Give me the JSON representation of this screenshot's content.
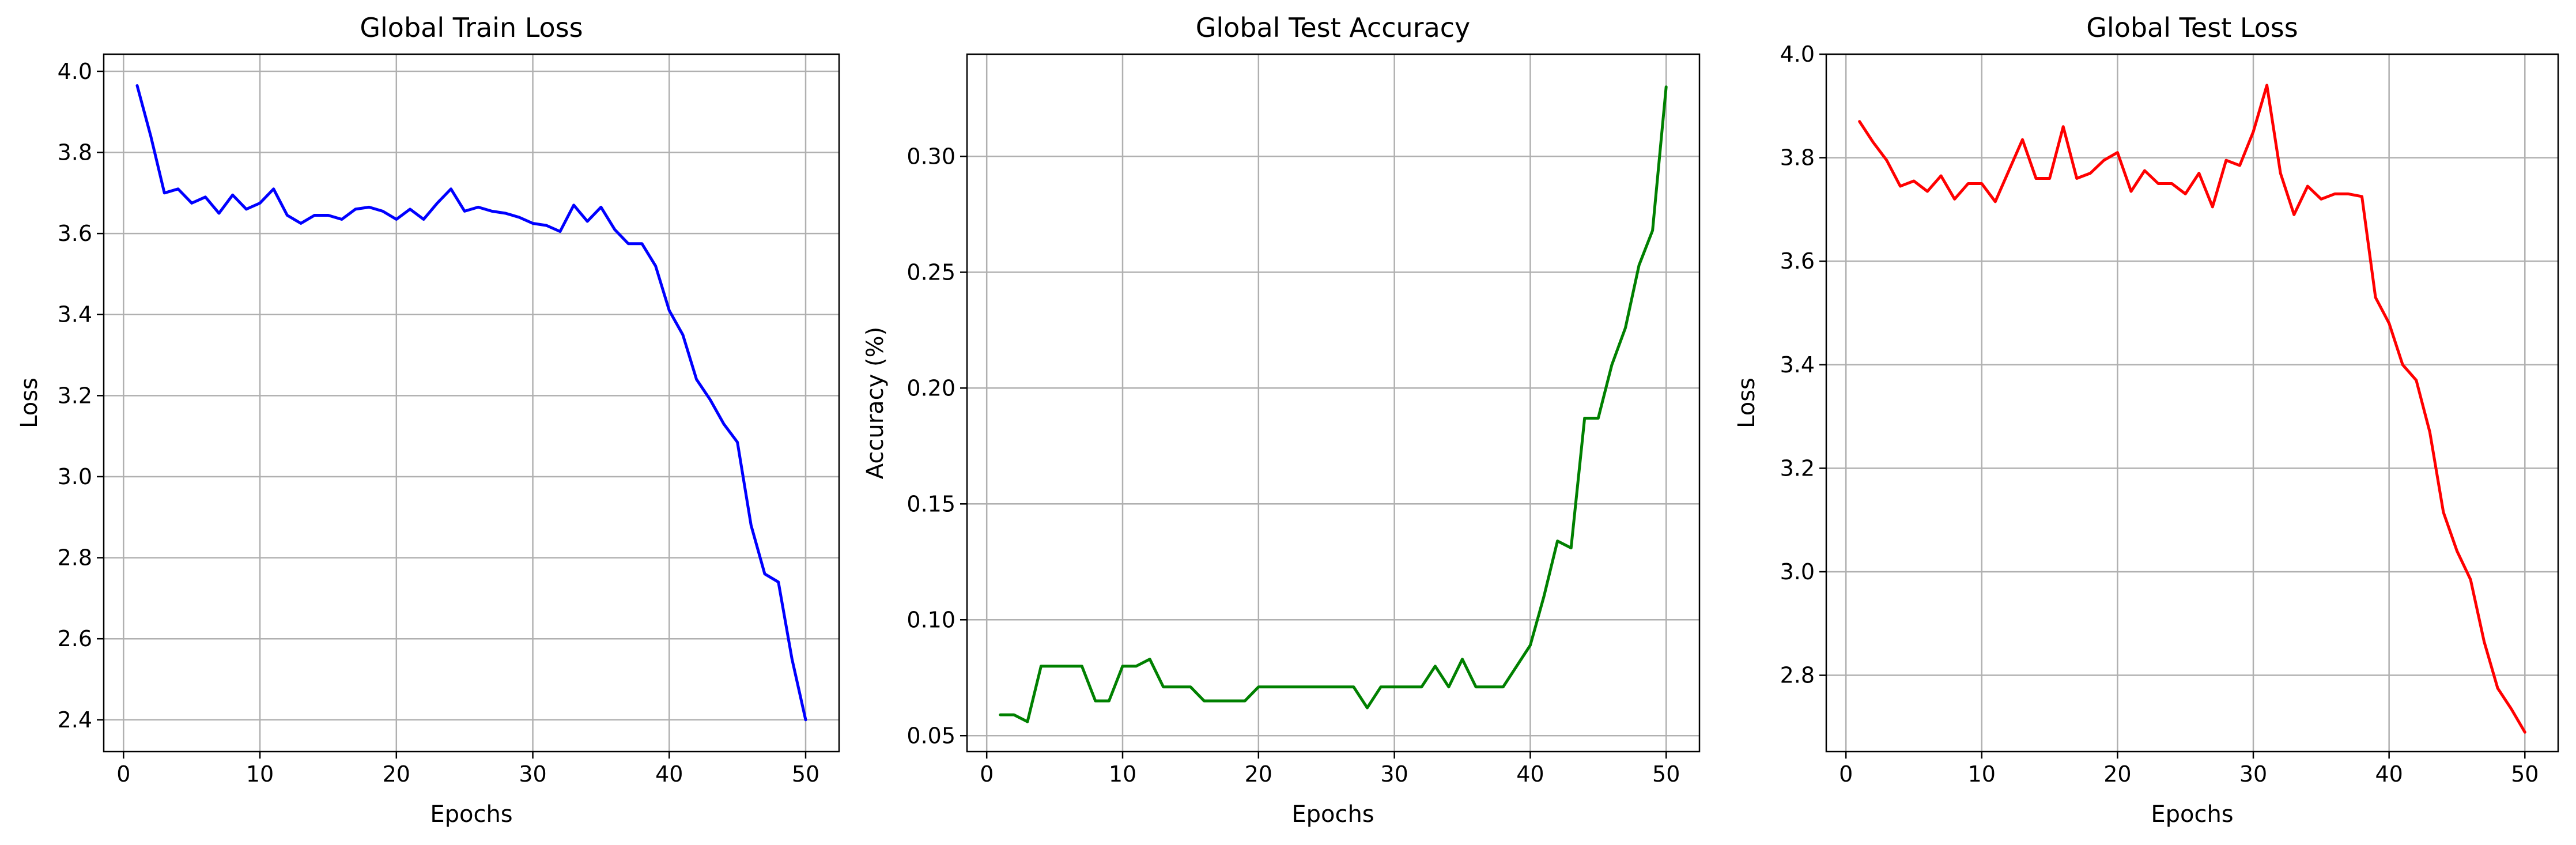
{
  "chart_data": [
    {
      "type": "line",
      "title": "Global Train Loss",
      "xlabel": "Epochs",
      "ylabel": "Loss",
      "xlim": [
        -1.45,
        52.45
      ],
      "ylim": [
        2.3215,
        4.0425
      ],
      "xticks": [
        0,
        10,
        20,
        30,
        40,
        50
      ],
      "yticks": [
        2.4,
        2.6,
        2.8,
        3.0,
        3.2,
        3.4,
        3.6,
        3.8,
        4.0
      ],
      "ytick_labels": [
        "2.4",
        "2.6",
        "2.8",
        "3.0",
        "3.2",
        "3.4",
        "3.6",
        "3.8",
        "4.0"
      ],
      "grid": true,
      "color": "#0000ff",
      "x": [
        1,
        2,
        3,
        4,
        5,
        6,
        7,
        8,
        9,
        10,
        11,
        12,
        13,
        14,
        15,
        16,
        17,
        18,
        19,
        20,
        21,
        22,
        23,
        24,
        25,
        26,
        27,
        28,
        29,
        30,
        31,
        32,
        33,
        34,
        35,
        36,
        37,
        38,
        39,
        40,
        41,
        42,
        43,
        44,
        45,
        46,
        47,
        48,
        49,
        50
      ],
      "y": [
        3.965,
        3.84,
        3.7,
        3.71,
        3.675,
        3.69,
        3.65,
        3.695,
        3.66,
        3.675,
        3.71,
        3.645,
        3.625,
        3.645,
        3.645,
        3.635,
        3.66,
        3.665,
        3.655,
        3.635,
        3.66,
        3.635,
        3.675,
        3.71,
        3.655,
        3.665,
        3.655,
        3.65,
        3.64,
        3.625,
        3.62,
        3.605,
        3.67,
        3.63,
        3.665,
        3.61,
        3.575,
        3.575,
        3.52,
        3.41,
        3.35,
        3.24,
        3.19,
        3.13,
        3.085,
        2.88,
        2.76,
        2.74,
        2.55,
        2.4
      ]
    },
    {
      "type": "line",
      "title": "Global Test Accuracy",
      "xlabel": "Epochs",
      "ylabel": "Accuracy (%)",
      "xlim": [
        -1.45,
        52.45
      ],
      "ylim": [
        0.0431,
        0.3441
      ],
      "xticks": [
        0,
        10,
        20,
        30,
        40,
        50
      ],
      "yticks": [
        0.05,
        0.1,
        0.15,
        0.2,
        0.25,
        0.3
      ],
      "ytick_labels": [
        "0.05",
        "0.10",
        "0.15",
        "0.20",
        "0.25",
        "0.30"
      ],
      "grid": true,
      "color": "#008000",
      "x": [
        1,
        2,
        3,
        4,
        5,
        6,
        7,
        8,
        9,
        10,
        11,
        12,
        13,
        14,
        15,
        16,
        17,
        18,
        19,
        20,
        21,
        22,
        23,
        24,
        25,
        26,
        27,
        28,
        29,
        30,
        31,
        32,
        33,
        34,
        35,
        36,
        37,
        38,
        39,
        40,
        41,
        42,
        43,
        44,
        45,
        46,
        47,
        48,
        49,
        50
      ],
      "y": [
        0.059,
        0.059,
        0.056,
        0.08,
        0.08,
        0.08,
        0.08,
        0.065,
        0.065,
        0.08,
        0.08,
        0.083,
        0.071,
        0.071,
        0.071,
        0.065,
        0.065,
        0.065,
        0.065,
        0.071,
        0.071,
        0.071,
        0.071,
        0.071,
        0.071,
        0.071,
        0.071,
        0.062,
        0.071,
        0.071,
        0.071,
        0.071,
        0.08,
        0.071,
        0.083,
        0.071,
        0.071,
        0.071,
        0.08,
        0.089,
        0.11,
        0.134,
        0.131,
        0.187,
        0.187,
        0.21,
        0.226,
        0.253,
        0.268,
        0.33
      ]
    },
    {
      "type": "line",
      "title": "Global Test Loss",
      "xlabel": "Epochs",
      "ylabel": "Loss",
      "xlim": [
        -1.45,
        52.45
      ],
      "ylim": [
        2.6525,
        4.0
      ],
      "xticks": [
        0,
        10,
        20,
        30,
        40,
        50
      ],
      "yticks": [
        2.8,
        3.0,
        3.2,
        3.4,
        3.6,
        3.8,
        4.0
      ],
      "ytick_labels": [
        "2.8",
        "3.0",
        "3.2",
        "3.4",
        "3.6",
        "3.8",
        "4.0"
      ],
      "grid": true,
      "color": "#ff0000",
      "x": [
        1,
        2,
        3,
        4,
        5,
        6,
        7,
        8,
        9,
        10,
        11,
        12,
        13,
        14,
        15,
        16,
        17,
        18,
        19,
        20,
        21,
        22,
        23,
        24,
        25,
        26,
        27,
        28,
        29,
        30,
        31,
        32,
        33,
        34,
        35,
        36,
        37,
        38,
        39,
        40,
        41,
        42,
        43,
        44,
        45,
        46,
        47,
        48,
        49,
        50
      ],
      "y": [
        3.87,
        3.83,
        3.795,
        3.745,
        3.755,
        3.735,
        3.765,
        3.72,
        3.75,
        3.75,
        3.715,
        3.775,
        3.835,
        3.76,
        3.76,
        3.86,
        3.76,
        3.77,
        3.795,
        3.81,
        3.735,
        3.775,
        3.75,
        3.75,
        3.73,
        3.77,
        3.705,
        3.795,
        3.785,
        3.85,
        3.94,
        3.77,
        3.69,
        3.745,
        3.72,
        3.73,
        3.73,
        3.725,
        3.53,
        3.48,
        3.4,
        3.37,
        3.27,
        3.115,
        3.04,
        2.985,
        2.865,
        2.775,
        2.735,
        2.69
      ]
    }
  ]
}
